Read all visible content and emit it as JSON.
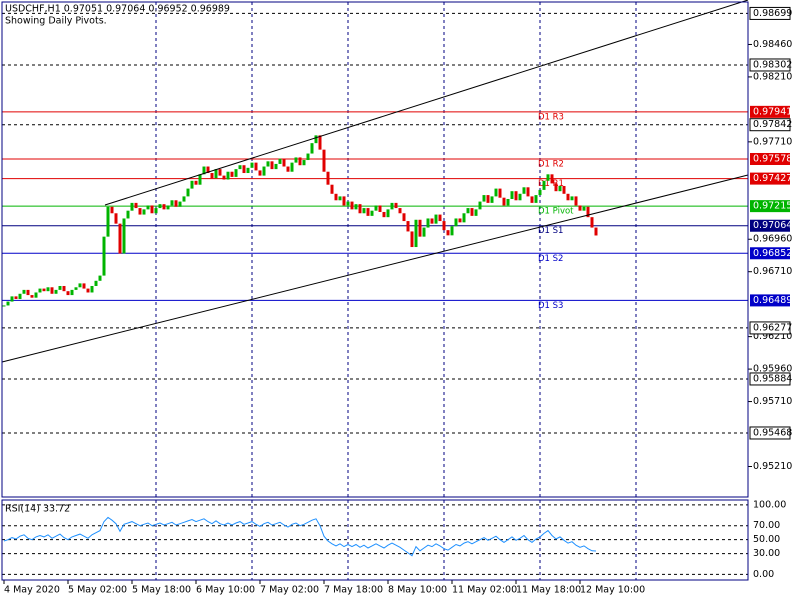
{
  "chart_data": {
    "type": "candlestick",
    "title": "USDCHF,H1  0.97051 0.97064 0.96952 0.96989",
    "subtitle": "Showing Daily Pivots.",
    "up_color": "#00b400",
    "down_color": "#e00000",
    "xlim": [
      -0.5,
      186
    ],
    "ylim": [
      0.94975,
      0.98787
    ],
    "closes": [
      0.9645,
      0.9648,
      0.9652,
      0.965,
      0.9654,
      0.9657,
      0.9653,
      0.9651,
      0.9655,
      0.9658,
      0.9656,
      0.9659,
      0.9654,
      0.9657,
      0.966,
      0.9656,
      0.9653,
      0.9657,
      0.9659,
      0.9662,
      0.9658,
      0.9655,
      0.966,
      0.9664,
      0.9668,
      0.9698,
      0.9721,
      0.9716,
      0.9708,
      0.9685,
      0.9712,
      0.9718,
      0.9724,
      0.972,
      0.9715,
      0.9719,
      0.9722,
      0.9716,
      0.972,
      0.9723,
      0.9719,
      0.9722,
      0.9726,
      0.9721,
      0.9725,
      0.9729,
      0.9735,
      0.9741,
      0.9738,
      0.9746,
      0.9752,
      0.9747,
      0.9743,
      0.975,
      0.9745,
      0.9742,
      0.9748,
      0.9744,
      0.975,
      0.9753,
      0.9747,
      0.9751,
      0.9755,
      0.9749,
      0.9745,
      0.9752,
      0.9756,
      0.975,
      0.9754,
      0.9758,
      0.9752,
      0.9748,
      0.9755,
      0.9759,
      0.9753,
      0.9757,
      0.9762,
      0.977,
      0.9776,
      0.9765,
      0.9748,
      0.9738,
      0.9731,
      0.9726,
      0.9729,
      0.9722,
      0.9725,
      0.9719,
      0.9723,
      0.9716,
      0.972,
      0.9714,
      0.9718,
      0.9722,
      0.9717,
      0.9713,
      0.9719,
      0.9724,
      0.972,
      0.9716,
      0.971,
      0.9702,
      0.969,
      0.9711,
      0.9698,
      0.9705,
      0.9712,
      0.9708,
      0.9715,
      0.971,
      0.9703,
      0.9699,
      0.9706,
      0.9712,
      0.9709,
      0.9716,
      0.972,
      0.9714,
      0.9719,
      0.9725,
      0.973,
      0.9724,
      0.9729,
      0.9735,
      0.9728,
      0.9722,
      0.9727,
      0.9733,
      0.9726,
      0.9731,
      0.9736,
      0.9729,
      0.9724,
      0.973,
      0.9734,
      0.9741,
      0.9746,
      0.9739,
      0.9733,
      0.9737,
      0.9731,
      0.9726,
      0.9729,
      0.9722,
      0.9718,
      0.9721,
      0.9713,
      0.9705,
      0.96989
    ],
    "yticks": [
      {
        "value": 0.9846,
        "label": "0.98460"
      },
      {
        "value": 0.9821,
        "label": "0.98210"
      },
      {
        "value": 0.9771,
        "label": "0.97710"
      },
      {
        "value": 0.9696,
        "label": "0.96960"
      },
      {
        "value": 0.9671,
        "label": "0.96710"
      },
      {
        "value": 0.9621,
        "label": "0.96210"
      },
      {
        "value": 0.9596,
        "label": "0.95960"
      },
      {
        "value": 0.9571,
        "label": "0.95710"
      },
      {
        "value": 0.9521,
        "label": "0.95210"
      }
    ],
    "grid_levels": [
      0.98699,
      0.98302,
      0.97842,
      0.96277,
      0.95884,
      0.95468
    ],
    "xgrid": [
      38,
      62,
      86,
      110,
      134,
      158
    ],
    "xticks": [
      {
        "value": 0,
        "label": "4 May 2020"
      },
      {
        "value": 16,
        "label": "5 May 02:00"
      },
      {
        "value": 32,
        "label": "5 May 18:00"
      },
      {
        "value": 48,
        "label": "6 May 10:00"
      },
      {
        "value": 64,
        "label": "7 May 02:00"
      },
      {
        "value": 80,
        "label": "7 May 18:00"
      },
      {
        "value": 96,
        "label": "8 May 10:00"
      },
      {
        "value": 112,
        "label": "11 May 02:00"
      },
      {
        "value": 128,
        "label": "11 May 18:00"
      },
      {
        "value": 144,
        "label": "12 May 10:00"
      }
    ],
    "pivots": [
      {
        "name": "D1 R3",
        "value": 0.97941,
        "color": "#e00000"
      },
      {
        "name": "D1 R2",
        "value": 0.97578,
        "color": "#e00000"
      },
      {
        "name": "D1 R1",
        "value": 0.97427,
        "color": "#e00000"
      },
      {
        "name": "D1 Pivot",
        "value": 0.97215,
        "color": "#00b400"
      },
      {
        "name": "D1 S1",
        "value": 0.97064,
        "color": "#000080"
      },
      {
        "name": "D1 S2",
        "value": 0.96852,
        "color": "#0000c8"
      },
      {
        "name": "D1 S3",
        "value": 0.96489,
        "color": "#0000c8"
      }
    ],
    "rsi": {
      "label": "RSI(14) 33.72",
      "color": "#1e90ff",
      "ylim": [
        -8,
        107
      ],
      "yticks": [
        {
          "value": 100,
          "label": "100.00"
        },
        {
          "value": 70,
          "label": "70.00"
        },
        {
          "value": 50,
          "label": "50.00"
        },
        {
          "value": 30,
          "label": "30.00"
        },
        {
          "value": 0,
          "label": "0.00"
        }
      ],
      "values": [
        48,
        50,
        53,
        51,
        55,
        57,
        52,
        50,
        54,
        56,
        54,
        57,
        52,
        55,
        58,
        53,
        50,
        54,
        56,
        58,
        55,
        52,
        57,
        60,
        63,
        76,
        82,
        78,
        73,
        62,
        72,
        74,
        76,
        73,
        70,
        72,
        74,
        70,
        72,
        74,
        71,
        73,
        75,
        71,
        73,
        75,
        77,
        79,
        76,
        78,
        80,
        76,
        73,
        77,
        73,
        71,
        74,
        71,
        74,
        76,
        72,
        74,
        76,
        72,
        69,
        73,
        75,
        71,
        73,
        75,
        71,
        68,
        72,
        74,
        70,
        72,
        75,
        78,
        80,
        70,
        55,
        48,
        44,
        41,
        44,
        40,
        43,
        40,
        43,
        39,
        42,
        38,
        41,
        44,
        41,
        38,
        42,
        45,
        42,
        39,
        35,
        31,
        27,
        40,
        34,
        38,
        42,
        40,
        44,
        41,
        37,
        35,
        39,
        43,
        41,
        45,
        47,
        44,
        47,
        50,
        53,
        49,
        52,
        55,
        50,
        46,
        50,
        54,
        49,
        52,
        56,
        50,
        46,
        51,
        54,
        59,
        63,
        56,
        51,
        54,
        49,
        45,
        47,
        42,
        39,
        41,
        37,
        34,
        33.72
      ]
    }
  }
}
